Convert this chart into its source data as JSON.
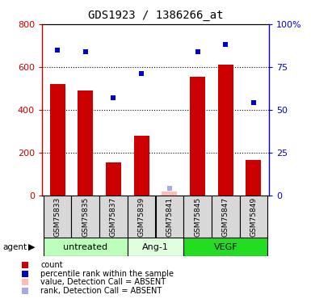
{
  "title": "GDS1923 / 1386266_at",
  "samples": [
    "GSM75833",
    "GSM75835",
    "GSM75837",
    "GSM75839",
    "GSM75841",
    "GSM75845",
    "GSM75847",
    "GSM75849"
  ],
  "bar_values": [
    520,
    490,
    155,
    280,
    null,
    555,
    610,
    165
  ],
  "bar_absent_values": [
    null,
    null,
    null,
    null,
    18,
    null,
    null,
    null
  ],
  "rank_values": [
    85,
    84,
    57,
    71,
    null,
    84,
    88,
    54
  ],
  "rank_absent_values": [
    null,
    null,
    null,
    null,
    4,
    null,
    null,
    null
  ],
  "bar_color": "#cc0000",
  "bar_absent_color": "#ffbbbb",
  "rank_color": "#0000cc",
  "rank_absent_color": "#aaaadd",
  "ylim_left": [
    0,
    800
  ],
  "ylim_right": [
    0,
    100
  ],
  "yticks_left": [
    0,
    200,
    400,
    600,
    800
  ],
  "yticks_right": [
    0,
    25,
    50,
    75,
    100
  ],
  "ytick_right_labels": [
    "0",
    "25",
    "50",
    "75",
    "100%"
  ],
  "groups": [
    {
      "label": "untreated",
      "samples": [
        0,
        1,
        2
      ],
      "color": "#bbffbb"
    },
    {
      "label": "Ang-1",
      "samples": [
        3,
        4
      ],
      "color": "#dfffdf"
    },
    {
      "label": "VEGF",
      "samples": [
        5,
        6,
        7
      ],
      "color": "#22dd22"
    }
  ],
  "agent_label": "agent",
  "left_axis_color": "#cc0000",
  "right_axis_color": "#0000cc",
  "sample_box_color": "#d8d8d8",
  "legend_items": [
    {
      "color": "#cc0000",
      "label": "count"
    },
    {
      "color": "#0000cc",
      "label": "percentile rank within the sample"
    },
    {
      "color": "#ffbbbb",
      "label": "value, Detection Call = ABSENT"
    },
    {
      "color": "#aaaadd",
      "label": "rank, Detection Call = ABSENT"
    }
  ]
}
